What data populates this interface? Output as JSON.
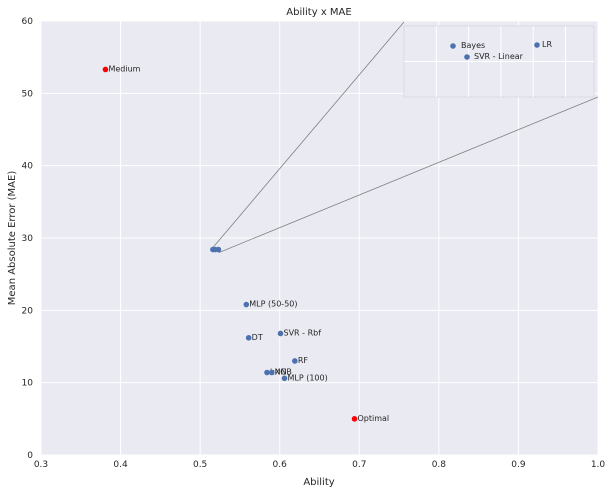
{
  "chart_data": {
    "type": "scatter",
    "title": "Ability x MAE",
    "xlabel": "Ability",
    "ylabel": "Mean Absolute Error (MAE)",
    "xlim": [
      0.3,
      1.0
    ],
    "ylim": [
      0,
      60
    ],
    "xticks": [
      "0.3",
      "0.4",
      "0.5",
      "0.6",
      "0.7",
      "0.8",
      "0.9",
      "1.0"
    ],
    "yticks": [
      "0",
      "10",
      "20",
      "30",
      "40",
      "50",
      "60"
    ],
    "grid": true,
    "colors": {
      "model": "#4c72b0",
      "reference": "#ff0000",
      "background": "#eaeaf2",
      "grid": "#ffffff",
      "connector": "#808080"
    },
    "points": [
      {
        "label": "Medium",
        "x": 0.381,
        "y": 53.3,
        "group": "reference"
      },
      {
        "label": "Optimal",
        "x": 0.694,
        "y": 5.0,
        "group": "reference"
      },
      {
        "label": "MLP (50-50)",
        "x": 0.558,
        "y": 20.8,
        "group": "model"
      },
      {
        "label": "SVR - Rbf",
        "x": 0.601,
        "y": 16.8,
        "group": "model"
      },
      {
        "label": "DT",
        "x": 0.561,
        "y": 16.2,
        "group": "model"
      },
      {
        "label": "RF",
        "x": 0.619,
        "y": 13.0,
        "group": "model"
      },
      {
        "label": "kNN",
        "x": 0.584,
        "y": 11.4,
        "group": "model"
      },
      {
        "label": "XGB",
        "x": 0.59,
        "y": 11.4,
        "group": "model"
      },
      {
        "label": "MLP (100)",
        "x": 0.606,
        "y": 10.6,
        "group": "model"
      },
      {
        "label": "",
        "x": 0.516,
        "y": 28.4,
        "group": "model"
      },
      {
        "label": "",
        "x": 0.519,
        "y": 28.4,
        "group": "model"
      },
      {
        "label": "",
        "x": 0.523,
        "y": 28.4,
        "group": "model"
      }
    ],
    "inset": {
      "points": [
        {
          "label": "Bayes",
          "group": "model"
        },
        {
          "label": "SVR - Linear",
          "group": "model"
        },
        {
          "label": "LR",
          "group": "model"
        }
      ]
    }
  }
}
